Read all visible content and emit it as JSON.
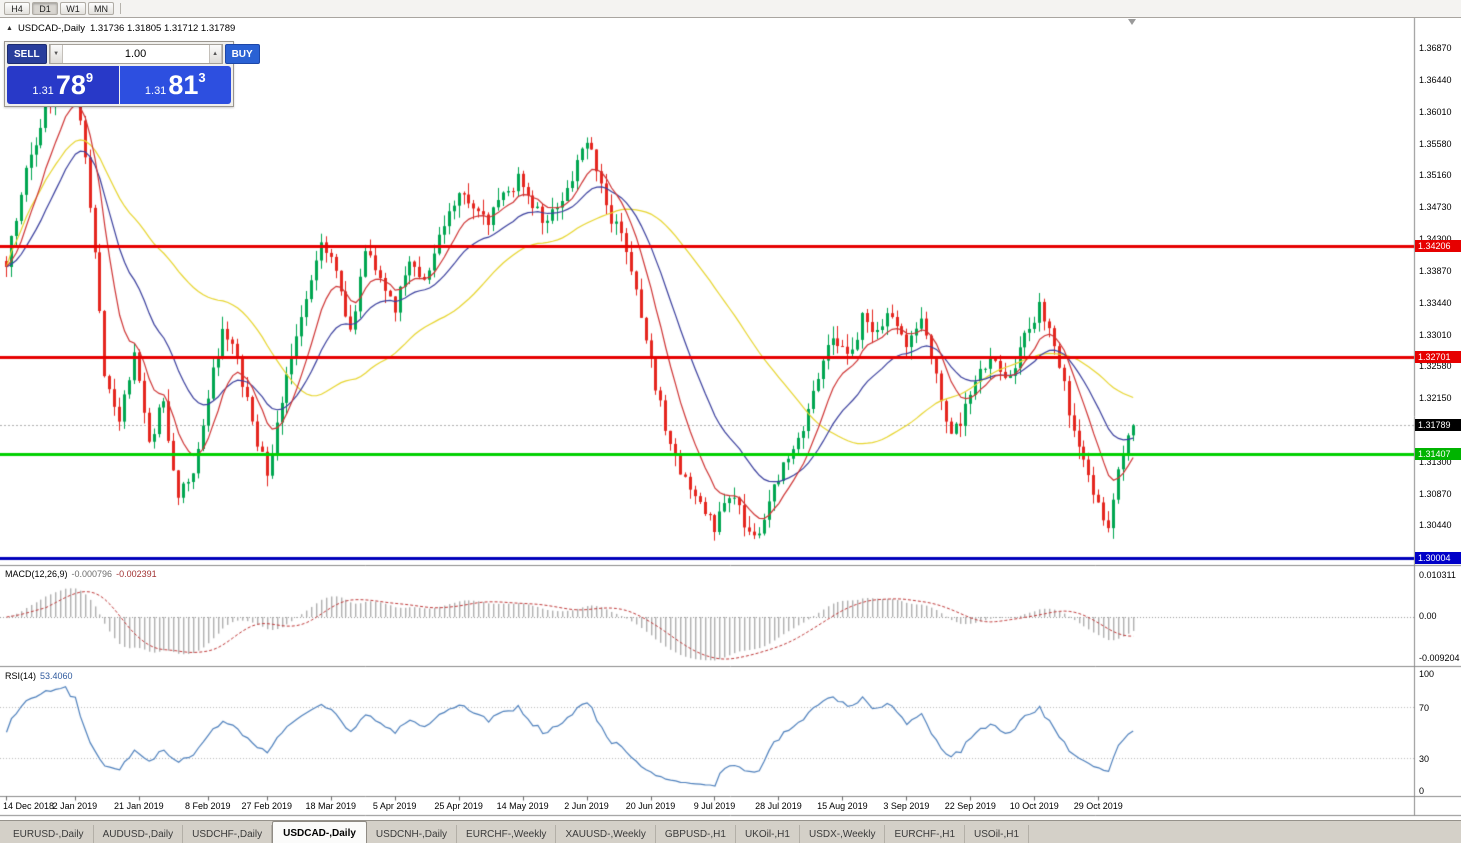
{
  "toolbar": {
    "timeframes": [
      "H4",
      "D1",
      "W1",
      "MN"
    ],
    "active_timeframe": "D1"
  },
  "chart": {
    "collapse_icon": "▲",
    "title": "USDCAD-,Daily",
    "ohlc": "1.31736 1.31805 1.31712 1.31789"
  },
  "trade_panel": {
    "sell_label": "SELL",
    "buy_label": "BUY",
    "volume": "1.00",
    "vol_down_icon": "▼",
    "vol_up_icon": "▲",
    "sell_price": {
      "prefix": "1.31",
      "big": "78",
      "sup": "9"
    },
    "buy_price": {
      "prefix": "1.31",
      "big": "81",
      "sup": "3"
    }
  },
  "price_axis": {
    "ticks": [
      {
        "label": "1.36870",
        "price": 1.3687
      },
      {
        "label": "1.36440",
        "price": 1.3644
      },
      {
        "label": "1.36010",
        "price": 1.3601
      },
      {
        "label": "1.35580",
        "price": 1.3558
      },
      {
        "label": "1.35160",
        "price": 1.3516
      },
      {
        "label": "1.34730",
        "price": 1.3473
      },
      {
        "label": "1.34300",
        "price": 1.343
      },
      {
        "label": "1.33870",
        "price": 1.3387
      },
      {
        "label": "1.33440",
        "price": 1.3344
      },
      {
        "label": "1.33010",
        "price": 1.3301
      },
      {
        "label": "1.32580",
        "price": 1.3258
      },
      {
        "label": "1.32150",
        "price": 1.3215
      },
      {
        "label": "1.31300",
        "price": 1.313
      },
      {
        "label": "1.30870",
        "price": 1.3087
      },
      {
        "label": "1.30440",
        "price": 1.3044
      }
    ],
    "tags": [
      {
        "name": "resistance-price-tag-upper",
        "label": "1.34206",
        "price": 1.34206,
        "bg": "#e60000"
      },
      {
        "name": "resistance-price-tag-lower",
        "label": "1.32701",
        "price": 1.32701,
        "bg": "#e60000"
      },
      {
        "name": "current-price-tag",
        "label": "1.31789",
        "price": 1.31789,
        "bg": "#000000"
      },
      {
        "name": "support-price-tag",
        "label": "1.31407",
        "price": 1.31407,
        "bg": "#00b400"
      },
      {
        "name": "lower-level-price-tag",
        "label": "1.30004",
        "price": 1.30004,
        "bg": "#0000c8"
      }
    ]
  },
  "level_lines": [
    {
      "price": 1.34206,
      "color": "#e60000",
      "width": 3
    },
    {
      "price": 1.32701,
      "color": "#e60000",
      "width": 3
    },
    {
      "price": 1.31407,
      "color": "#00d000",
      "width": 3
    },
    {
      "price": 1.30004,
      "color": "#0000bb",
      "width": 3
    }
  ],
  "current_price": 1.31789,
  "indicators": {
    "macd": {
      "label": "MACD(12,26,9)",
      "value_main": "-0.000796",
      "value_signal": "-0.002391",
      "axis": [
        {
          "label": "0.010311",
          "pos": "top"
        },
        {
          "label": "0.00",
          "pos": "zero"
        },
        {
          "label": "-0.009204",
          "pos": "bottom"
        }
      ]
    },
    "rsi": {
      "label": "RSI(14)",
      "value": "53.4060",
      "axis": [
        {
          "label": "100",
          "value": 100
        },
        {
          "label": "70",
          "value": 70
        },
        {
          "label": "30",
          "value": 30
        },
        {
          "label": "0",
          "value": 0
        }
      ]
    }
  },
  "dates": [
    {
      "label": "14 Dec 2018",
      "index": 0
    },
    {
      "label": "2 Jan 2019",
      "index": 14
    },
    {
      "label": "21 Jan 2019",
      "index": 27
    },
    {
      "label": "8 Feb 2019",
      "index": 41
    },
    {
      "label": "27 Feb 2019",
      "index": 53
    },
    {
      "label": "18 Mar 2019",
      "index": 66
    },
    {
      "label": "5 Apr 2019",
      "index": 79
    },
    {
      "label": "25 Apr 2019",
      "index": 92
    },
    {
      "label": "14 May 2019",
      "index": 105
    },
    {
      "label": "2 Jun 2019",
      "index": 118
    },
    {
      "label": "20 Jun 2019",
      "index": 131
    },
    {
      "label": "9 Jul 2019",
      "index": 144
    },
    {
      "label": "28 Jul 2019",
      "index": 157
    },
    {
      "label": "15 Aug 2019",
      "index": 170
    },
    {
      "label": "3 Sep 2019",
      "index": 183
    },
    {
      "label": "22 Sep 2019",
      "index": 196
    },
    {
      "label": "10 Oct 2019",
      "index": 209
    },
    {
      "label": "29 Oct 2019",
      "index": 222
    }
  ],
  "tabs": [
    {
      "label": "EURUSD-,Daily",
      "active": false
    },
    {
      "label": "AUDUSD-,Daily",
      "active": false
    },
    {
      "label": "USDCHF-,Daily",
      "active": false
    },
    {
      "label": "USDCAD-,Daily",
      "active": true
    },
    {
      "label": "USDCNH-,Daily",
      "active": false
    },
    {
      "label": "EURCHF-,Weekly",
      "active": false
    },
    {
      "label": "XAUUSD-,Weekly",
      "active": false
    },
    {
      "label": "GBPUSD-,H1",
      "active": false
    },
    {
      "label": "UKOil-,H1",
      "active": false
    },
    {
      "label": "USDX-,Weekly",
      "active": false
    },
    {
      "label": "EURCHF-,H1",
      "active": false
    },
    {
      "label": "USOil-,H1",
      "active": false
    }
  ],
  "chart_data": {
    "type": "candlestick",
    "symbol": "USDCAD",
    "period": "Daily",
    "visible_ohlc": {
      "open": 1.31736,
      "high": 1.31805,
      "low": 1.31712,
      "close": 1.31789
    },
    "candle_count": 230,
    "y_range": [
      1.2995,
      1.3727
    ],
    "horizontal_levels": [
      1.34206,
      1.32701,
      1.31407,
      1.30004
    ],
    "price_path_anchors": [
      [
        0,
        1.34
      ],
      [
        4,
        1.352
      ],
      [
        8,
        1.361
      ],
      [
        12,
        1.3655
      ],
      [
        14,
        1.364
      ],
      [
        17,
        1.348
      ],
      [
        20,
        1.325
      ],
      [
        23,
        1.319
      ],
      [
        26,
        1.327
      ],
      [
        29,
        1.316
      ],
      [
        32,
        1.321
      ],
      [
        35,
        1.308
      ],
      [
        38,
        1.312
      ],
      [
        41,
        1.322
      ],
      [
        44,
        1.331
      ],
      [
        47,
        1.327
      ],
      [
        50,
        1.318
      ],
      [
        53,
        1.312
      ],
      [
        56,
        1.321
      ],
      [
        60,
        1.333
      ],
      [
        64,
        1.343
      ],
      [
        67,
        1.339
      ],
      [
        70,
        1.33
      ],
      [
        73,
        1.342
      ],
      [
        76,
        1.337
      ],
      [
        79,
        1.334
      ],
      [
        82,
        1.34
      ],
      [
        85,
        1.337
      ],
      [
        88,
        1.343
      ],
      [
        92,
        1.35
      ],
      [
        95,
        1.347
      ],
      [
        98,
        1.345
      ],
      [
        101,
        1.349
      ],
      [
        104,
        1.351
      ],
      [
        107,
        1.347
      ],
      [
        110,
        1.345
      ],
      [
        113,
        1.349
      ],
      [
        116,
        1.353
      ],
      [
        118,
        1.356
      ],
      [
        120,
        1.353
      ],
      [
        123,
        1.346
      ],
      [
        126,
        1.342
      ],
      [
        129,
        1.333
      ],
      [
        132,
        1.323
      ],
      [
        135,
        1.315
      ],
      [
        138,
        1.31
      ],
      [
        141,
        1.307
      ],
      [
        144,
        1.3045
      ],
      [
        147,
        1.309
      ],
      [
        150,
        1.305
      ],
      [
        153,
        1.303
      ],
      [
        156,
        1.309
      ],
      [
        159,
        1.314
      ],
      [
        162,
        1.318
      ],
      [
        165,
        1.324
      ],
      [
        168,
        1.33
      ],
      [
        171,
        1.327
      ],
      [
        174,
        1.332
      ],
      [
        177,
        1.33
      ],
      [
        180,
        1.333
      ],
      [
        183,
        1.329
      ],
      [
        186,
        1.332
      ],
      [
        189,
        1.324
      ],
      [
        192,
        1.316
      ],
      [
        195,
        1.32
      ],
      [
        198,
        1.325
      ],
      [
        201,
        1.327
      ],
      [
        204,
        1.324
      ],
      [
        207,
        1.33
      ],
      [
        210,
        1.334
      ],
      [
        213,
        1.329
      ],
      [
        216,
        1.32
      ],
      [
        219,
        1.313
      ],
      [
        222,
        1.307
      ],
      [
        224,
        1.3045
      ],
      [
        226,
        1.311
      ],
      [
        228,
        1.316
      ],
      [
        229,
        1.31789
      ]
    ],
    "colors": {
      "candle_up": "#00a651",
      "candle_down": "#e5261f",
      "ma_fast": "#cf3434",
      "ma_medium": "#3a3f9e",
      "ma_slow": "#e7d52e",
      "macd_histogram": "#b0b0b0",
      "macd_signal": "#c03a3a",
      "rsi_line": "#4f81bd"
    },
    "indicator_summaries": [
      {
        "name": "MACD",
        "params": [
          12,
          26,
          9
        ],
        "current_values": [
          -0.000796,
          -0.002391
        ]
      },
      {
        "name": "RSI",
        "params": [
          14
        ],
        "current_value": 53.406
      }
    ]
  }
}
